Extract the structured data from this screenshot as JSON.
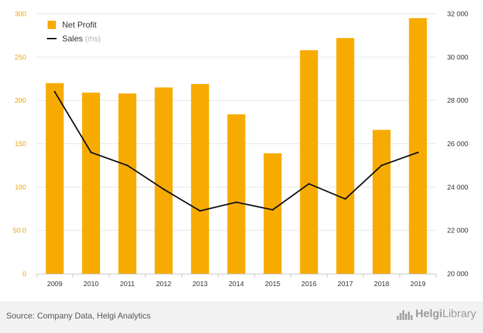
{
  "chart_data": {
    "type": "bar",
    "categories": [
      "2009",
      "2010",
      "2011",
      "2012",
      "2013",
      "2014",
      "2015",
      "2016",
      "2017",
      "2018",
      "2019"
    ],
    "series": [
      {
        "name": "Net Profit",
        "type": "bar",
        "axis": "left",
        "values": [
          220,
          209,
          208,
          215,
          219,
          184,
          139,
          258,
          272,
          166,
          295
        ]
      },
      {
        "name": "Sales",
        "type": "line",
        "axis": "right",
        "values": [
          28400,
          25600,
          25000,
          23900,
          22900,
          23300,
          22950,
          24150,
          23450,
          25000,
          25600
        ]
      }
    ],
    "legend": {
      "placement": "top-left",
      "sales_suffix": "(rhs)"
    },
    "left_axis": {
      "min": 0,
      "max": 300,
      "ticks": [
        0,
        50,
        100,
        150,
        200,
        250,
        300
      ],
      "tick_labels": [
        "0",
        "50.0",
        "100",
        "150",
        "200",
        "250",
        "300"
      ]
    },
    "right_axis": {
      "min": 20000,
      "max": 32000,
      "ticks": [
        20000,
        22000,
        24000,
        26000,
        28000,
        30000,
        32000
      ],
      "tick_labels": [
        "20 000",
        "22 000",
        "24 000",
        "26 000",
        "28 000",
        "30 000",
        "32 000"
      ]
    },
    "grid": true
  },
  "colors": {
    "bar": "#f7ab00",
    "line": "#111111",
    "left_ticks": "#f0a500",
    "grid": "#e6e6e6"
  },
  "footer": {
    "source": "Source: Company Data, Helgi Analytics",
    "logo_prefix": "Helgi",
    "logo_suffix": "Library"
  }
}
